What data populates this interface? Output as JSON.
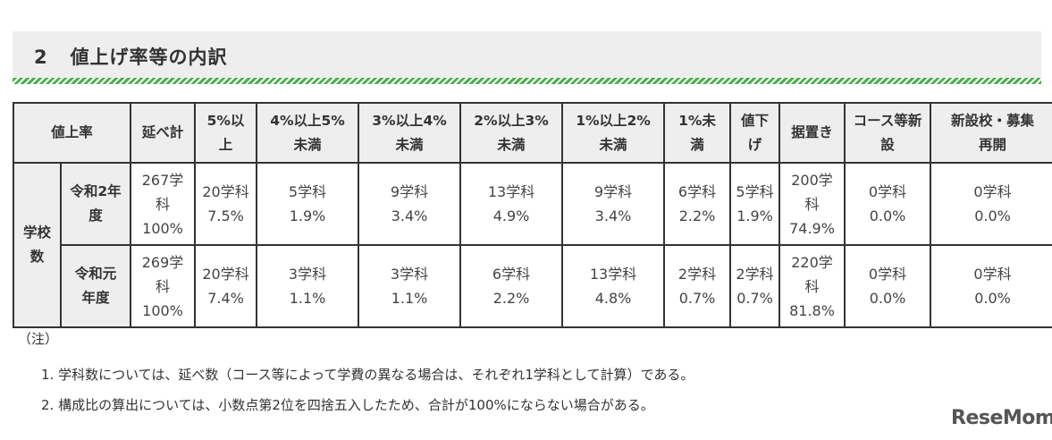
{
  "section": {
    "number": "2",
    "title": "値上げ率等の内訳"
  },
  "table": {
    "row_group_label": "学校数",
    "headers": {
      "rate": "値上率",
      "total": "延べ計",
      "c1": "5%以上",
      "c2": "4%以上5%未満",
      "c3": "3%以上4%未満",
      "c4": "2%以上3%未満",
      "c5": "1%以上2%未満",
      "c6": "1%未満",
      "c7": "値下げ",
      "c8": "据置き",
      "c9": "コース等新設",
      "c10": "新設校・募集再開"
    },
    "header_lines": {
      "c1": [
        "5%以",
        "上"
      ],
      "c2": [
        "4%以上5%",
        "未満"
      ],
      "c3": [
        "3%以上4%",
        "未満"
      ],
      "c4": [
        "2%以上3%",
        "未満"
      ],
      "c5": [
        "1%以上2%",
        "未満"
      ],
      "c6": [
        "1%未",
        "満"
      ],
      "c7": [
        "値下",
        "げ"
      ],
      "c9": [
        "コース等新",
        "設"
      ],
      "c10": [
        "新設校・募集",
        "再開"
      ]
    },
    "rows": [
      {
        "year_lines": [
          "令和2年",
          "度"
        ],
        "total": [
          "267学",
          "科",
          "100%"
        ],
        "c1": [
          "20学科",
          "7.5%"
        ],
        "c2": [
          "5学科",
          "1.9%"
        ],
        "c3": [
          "9学科",
          "3.4%"
        ],
        "c4": [
          "13学科",
          "4.9%"
        ],
        "c5": [
          "9学科",
          "3.4%"
        ],
        "c6": [
          "6学科",
          "2.2%"
        ],
        "c7": [
          "5学科",
          "1.9%"
        ],
        "c8": [
          "200学",
          "科",
          "74.9%"
        ],
        "c9": [
          "0学科",
          "0.0%"
        ],
        "c10": [
          "0学科",
          "0.0%"
        ]
      },
      {
        "year_lines": [
          "令和元",
          "年度"
        ],
        "total": [
          "269学",
          "科",
          "100%"
        ],
        "c1": [
          "20学科",
          "7.4%"
        ],
        "c2": [
          "3学科",
          "1.1%"
        ],
        "c3": [
          "3学科",
          "1.1%"
        ],
        "c4": [
          "6学科",
          "2.2%"
        ],
        "c5": [
          "13学科",
          "4.8%"
        ],
        "c6": [
          "2学科",
          "0.7%"
        ],
        "c7": [
          "2学科",
          "0.7%"
        ],
        "c8": [
          "220学",
          "科",
          "81.8%"
        ],
        "c9": [
          "0学科",
          "0.0%"
        ],
        "c10": [
          "0学科",
          "0.0%"
        ]
      }
    ]
  },
  "notes": {
    "head": "（注）",
    "items": [
      "1. 学科数については、延べ数（コース等によって学費の異なる場合は、それぞれ1学科として計算）である。",
      "2. 構成比の算出については、小数点第2位を四捨五入したため、合計が100%にならない場合がある。"
    ]
  },
  "watermark": "ReseMom"
}
